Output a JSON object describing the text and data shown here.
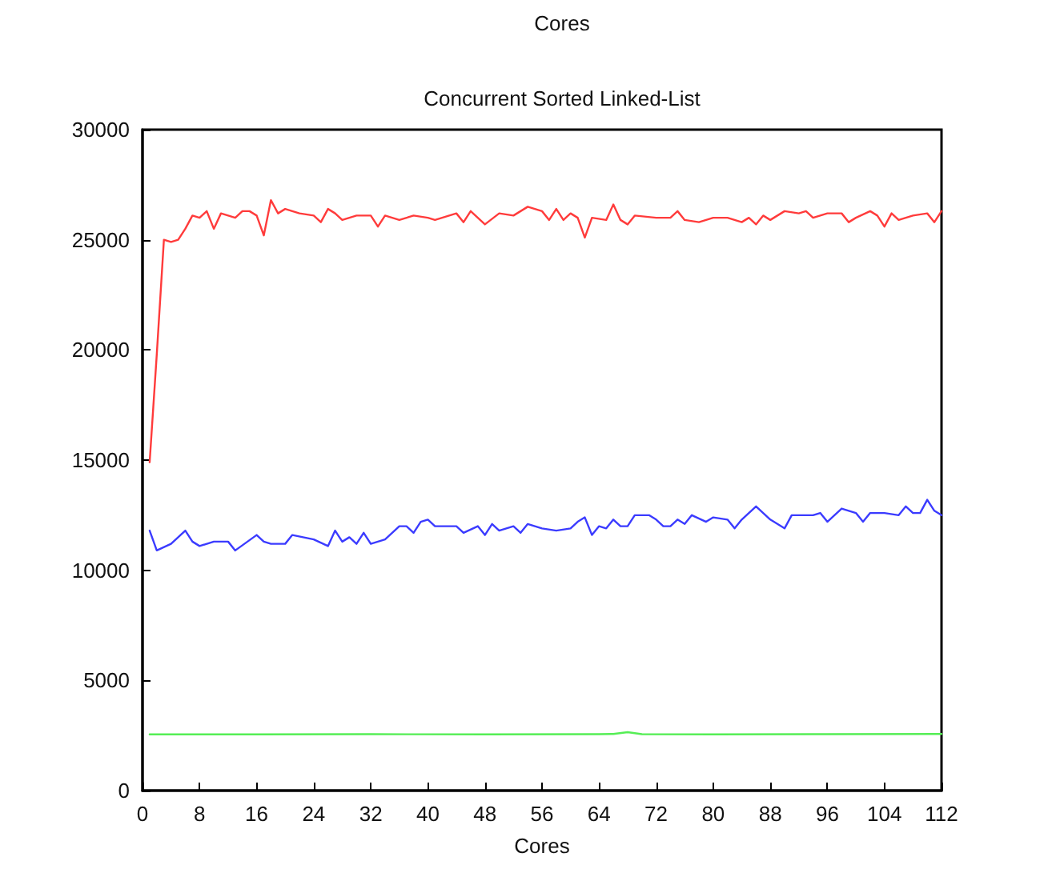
{
  "chart_data": {
    "type": "line",
    "title": "Concurrent Sorted Linked-List",
    "xlabel": "Cores",
    "annotations": [
      "Cores"
    ],
    "xlim": [
      0,
      112
    ],
    "xticks": [
      0,
      8,
      16,
      24,
      32,
      40,
      48,
      56,
      64,
      72,
      80,
      88,
      96,
      104,
      112
    ],
    "ylim": [
      0,
      30000
    ],
    "yticks": [
      0,
      5000,
      10000,
      15000,
      20000,
      25000,
      30000
    ],
    "grid": false,
    "marker": "none",
    "line_style": "solid",
    "series": [
      {
        "color": "#ff3b3b",
        "x": [
          1,
          2,
          3,
          4,
          5,
          6,
          7,
          8,
          9,
          10,
          11,
          12,
          13,
          14,
          15,
          16,
          17,
          18,
          19,
          20,
          22,
          24,
          25,
          26,
          27,
          28,
          30,
          32,
          33,
          34,
          36,
          38,
          40,
          41,
          42,
          44,
          45,
          46,
          48,
          50,
          52,
          54,
          56,
          57,
          58,
          59,
          60,
          61,
          62,
          63,
          65,
          66,
          67,
          68,
          69,
          72,
          74,
          75,
          76,
          78,
          80,
          82,
          84,
          85,
          86,
          87,
          88,
          90,
          92,
          93,
          94,
          96,
          98,
          99,
          100,
          102,
          103,
          104,
          105,
          106,
          108,
          110,
          111,
          112
        ],
        "values": [
          14900,
          19800,
          25000,
          24900,
          25000,
          25500,
          26100,
          26000,
          26300,
          25500,
          26200,
          26100,
          26000,
          26300,
          26300,
          26100,
          25200,
          26800,
          26200,
          26400,
          26200,
          26100,
          25800,
          26400,
          26200,
          25900,
          26100,
          26100,
          25600,
          26100,
          25900,
          26100,
          26000,
          25900,
          26000,
          26200,
          25800,
          26300,
          25700,
          26200,
          26100,
          26500,
          26300,
          25900,
          26400,
          25900,
          26200,
          26000,
          25100,
          26000,
          25900,
          26600,
          25900,
          25700,
          26100,
          26000,
          26000,
          26300,
          25900,
          25800,
          26000,
          26000,
          25800,
          26000,
          25700,
          26100,
          25900,
          26300,
          26200,
          26300,
          26000,
          26200,
          26200,
          25800,
          26000,
          26300,
          26100,
          25600,
          26200,
          25900,
          26100,
          26200,
          25800,
          26300
        ]
      },
      {
        "color": "#3b3bff",
        "x": [
          1,
          2,
          4,
          6,
          7,
          8,
          10,
          12,
          13,
          16,
          17,
          18,
          20,
          21,
          24,
          26,
          27,
          28,
          29,
          30,
          31,
          32,
          34,
          36,
          37,
          38,
          39,
          40,
          41,
          44,
          45,
          47,
          48,
          49,
          50,
          52,
          53,
          54,
          56,
          58,
          60,
          61,
          62,
          63,
          64,
          65,
          66,
          67,
          68,
          69,
          71,
          72,
          73,
          74,
          75,
          76,
          77,
          79,
          80,
          82,
          83,
          84,
          86,
          88,
          90,
          91,
          92,
          94,
          95,
          96,
          98,
          100,
          101,
          102,
          104,
          106,
          107,
          108,
          109,
          110,
          111,
          112
        ],
        "values": [
          11800,
          10900,
          11200,
          11800,
          11300,
          11100,
          11300,
          11300,
          10900,
          11600,
          11300,
          11200,
          11200,
          11600,
          11400,
          11100,
          11800,
          11300,
          11500,
          11200,
          11700,
          11200,
          11400,
          12000,
          12000,
          11700,
          12200,
          12300,
          12000,
          12000,
          11700,
          12000,
          11600,
          12100,
          11800,
          12000,
          11700,
          12100,
          11900,
          11800,
          11900,
          12200,
          12400,
          11600,
          12000,
          11900,
          12300,
          12000,
          12000,
          12500,
          12500,
          12300,
          12000,
          12000,
          12300,
          12100,
          12500,
          12200,
          12400,
          12300,
          11900,
          12300,
          12900,
          12300,
          11900,
          12500,
          12500,
          12500,
          12600,
          12200,
          12800,
          12600,
          12200,
          12600,
          12600,
          12500,
          12900,
          12600,
          12600,
          13200,
          12700,
          12500
        ]
      },
      {
        "color": "#55ee55",
        "x": [
          1,
          16,
          32,
          48,
          64,
          66,
          68,
          70,
          80,
          96,
          112
        ],
        "values": [
          2550,
          2550,
          2560,
          2550,
          2560,
          2570,
          2650,
          2560,
          2550,
          2560,
          2570
        ]
      }
    ]
  }
}
